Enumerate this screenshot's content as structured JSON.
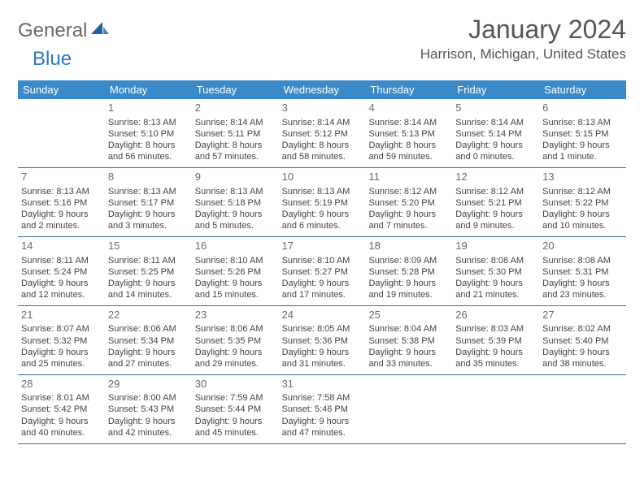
{
  "brand": {
    "part1": "General",
    "part2": "Blue"
  },
  "title": "January 2024",
  "location": "Harrison, Michigan, United States",
  "dow": [
    "Sunday",
    "Monday",
    "Tuesday",
    "Wednesday",
    "Thursday",
    "Friday",
    "Saturday"
  ],
  "colors": {
    "header_bg": "#3a8ac9",
    "divider": "#2c6fa8",
    "brand_blue": "#2f78bf",
    "brand_gray": "#6a6a6a"
  },
  "weeks": [
    [
      {
        "num": "",
        "lines": []
      },
      {
        "num": "1",
        "lines": [
          "Sunrise: 8:13 AM",
          "Sunset: 5:10 PM",
          "Daylight: 8 hours",
          "and 56 minutes."
        ]
      },
      {
        "num": "2",
        "lines": [
          "Sunrise: 8:14 AM",
          "Sunset: 5:11 PM",
          "Daylight: 8 hours",
          "and 57 minutes."
        ]
      },
      {
        "num": "3",
        "lines": [
          "Sunrise: 8:14 AM",
          "Sunset: 5:12 PM",
          "Daylight: 8 hours",
          "and 58 minutes."
        ]
      },
      {
        "num": "4",
        "lines": [
          "Sunrise: 8:14 AM",
          "Sunset: 5:13 PM",
          "Daylight: 8 hours",
          "and 59 minutes."
        ]
      },
      {
        "num": "5",
        "lines": [
          "Sunrise: 8:14 AM",
          "Sunset: 5:14 PM",
          "Daylight: 9 hours",
          "and 0 minutes."
        ]
      },
      {
        "num": "6",
        "lines": [
          "Sunrise: 8:13 AM",
          "Sunset: 5:15 PM",
          "Daylight: 9 hours",
          "and 1 minute."
        ]
      }
    ],
    [
      {
        "num": "7",
        "lines": [
          "Sunrise: 8:13 AM",
          "Sunset: 5:16 PM",
          "Daylight: 9 hours",
          "and 2 minutes."
        ]
      },
      {
        "num": "8",
        "lines": [
          "Sunrise: 8:13 AM",
          "Sunset: 5:17 PM",
          "Daylight: 9 hours",
          "and 3 minutes."
        ]
      },
      {
        "num": "9",
        "lines": [
          "Sunrise: 8:13 AM",
          "Sunset: 5:18 PM",
          "Daylight: 9 hours",
          "and 5 minutes."
        ]
      },
      {
        "num": "10",
        "lines": [
          "Sunrise: 8:13 AM",
          "Sunset: 5:19 PM",
          "Daylight: 9 hours",
          "and 6 minutes."
        ]
      },
      {
        "num": "11",
        "lines": [
          "Sunrise: 8:12 AM",
          "Sunset: 5:20 PM",
          "Daylight: 9 hours",
          "and 7 minutes."
        ]
      },
      {
        "num": "12",
        "lines": [
          "Sunrise: 8:12 AM",
          "Sunset: 5:21 PM",
          "Daylight: 9 hours",
          "and 9 minutes."
        ]
      },
      {
        "num": "13",
        "lines": [
          "Sunrise: 8:12 AM",
          "Sunset: 5:22 PM",
          "Daylight: 9 hours",
          "and 10 minutes."
        ]
      }
    ],
    [
      {
        "num": "14",
        "lines": [
          "Sunrise: 8:11 AM",
          "Sunset: 5:24 PM",
          "Daylight: 9 hours",
          "and 12 minutes."
        ]
      },
      {
        "num": "15",
        "lines": [
          "Sunrise: 8:11 AM",
          "Sunset: 5:25 PM",
          "Daylight: 9 hours",
          "and 14 minutes."
        ]
      },
      {
        "num": "16",
        "lines": [
          "Sunrise: 8:10 AM",
          "Sunset: 5:26 PM",
          "Daylight: 9 hours",
          "and 15 minutes."
        ]
      },
      {
        "num": "17",
        "lines": [
          "Sunrise: 8:10 AM",
          "Sunset: 5:27 PM",
          "Daylight: 9 hours",
          "and 17 minutes."
        ]
      },
      {
        "num": "18",
        "lines": [
          "Sunrise: 8:09 AM",
          "Sunset: 5:28 PM",
          "Daylight: 9 hours",
          "and 19 minutes."
        ]
      },
      {
        "num": "19",
        "lines": [
          "Sunrise: 8:08 AM",
          "Sunset: 5:30 PM",
          "Daylight: 9 hours",
          "and 21 minutes."
        ]
      },
      {
        "num": "20",
        "lines": [
          "Sunrise: 8:08 AM",
          "Sunset: 5:31 PM",
          "Daylight: 9 hours",
          "and 23 minutes."
        ]
      }
    ],
    [
      {
        "num": "21",
        "lines": [
          "Sunrise: 8:07 AM",
          "Sunset: 5:32 PM",
          "Daylight: 9 hours",
          "and 25 minutes."
        ]
      },
      {
        "num": "22",
        "lines": [
          "Sunrise: 8:06 AM",
          "Sunset: 5:34 PM",
          "Daylight: 9 hours",
          "and 27 minutes."
        ]
      },
      {
        "num": "23",
        "lines": [
          "Sunrise: 8:06 AM",
          "Sunset: 5:35 PM",
          "Daylight: 9 hours",
          "and 29 minutes."
        ]
      },
      {
        "num": "24",
        "lines": [
          "Sunrise: 8:05 AM",
          "Sunset: 5:36 PM",
          "Daylight: 9 hours",
          "and 31 minutes."
        ]
      },
      {
        "num": "25",
        "lines": [
          "Sunrise: 8:04 AM",
          "Sunset: 5:38 PM",
          "Daylight: 9 hours",
          "and 33 minutes."
        ]
      },
      {
        "num": "26",
        "lines": [
          "Sunrise: 8:03 AM",
          "Sunset: 5:39 PM",
          "Daylight: 9 hours",
          "and 35 minutes."
        ]
      },
      {
        "num": "27",
        "lines": [
          "Sunrise: 8:02 AM",
          "Sunset: 5:40 PM",
          "Daylight: 9 hours",
          "and 38 minutes."
        ]
      }
    ],
    [
      {
        "num": "28",
        "lines": [
          "Sunrise: 8:01 AM",
          "Sunset: 5:42 PM",
          "Daylight: 9 hours",
          "and 40 minutes."
        ]
      },
      {
        "num": "29",
        "lines": [
          "Sunrise: 8:00 AM",
          "Sunset: 5:43 PM",
          "Daylight: 9 hours",
          "and 42 minutes."
        ]
      },
      {
        "num": "30",
        "lines": [
          "Sunrise: 7:59 AM",
          "Sunset: 5:44 PM",
          "Daylight: 9 hours",
          "and 45 minutes."
        ]
      },
      {
        "num": "31",
        "lines": [
          "Sunrise: 7:58 AM",
          "Sunset: 5:46 PM",
          "Daylight: 9 hours",
          "and 47 minutes."
        ]
      },
      {
        "num": "",
        "lines": []
      },
      {
        "num": "",
        "lines": []
      },
      {
        "num": "",
        "lines": []
      }
    ]
  ]
}
